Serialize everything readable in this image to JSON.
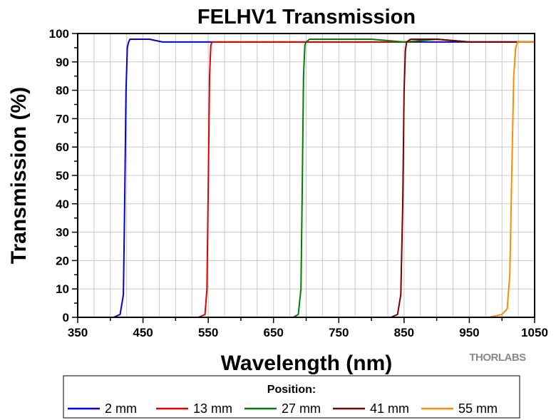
{
  "chart_data": {
    "type": "line",
    "title": "FELHV1 Transmission",
    "xlabel": "Wavelength (nm)",
    "ylabel": "Transmission (%)",
    "xlim": [
      350,
      1050
    ],
    "ylim": [
      0,
      100
    ],
    "xticks": [
      350,
      450,
      550,
      650,
      750,
      850,
      950,
      1050
    ],
    "yticks": [
      0,
      10,
      20,
      30,
      40,
      50,
      60,
      70,
      80,
      90,
      100
    ],
    "grid": true,
    "legend": {
      "title": "Position:",
      "placement": "bottom"
    },
    "logo": "THORLABS",
    "series": [
      {
        "name": "2 mm",
        "color": "#0000dd",
        "x": [
          350,
          405,
          415,
          420,
          422,
          424,
          426,
          428,
          430,
          440,
          460,
          480,
          500,
          520,
          540,
          560,
          600,
          650,
          700,
          750,
          800,
          850,
          900,
          950,
          1000,
          1050
        ],
        "y": [
          0,
          0,
          1,
          8,
          40,
          80,
          95,
          97,
          98,
          98,
          98,
          97,
          97,
          97,
          97,
          97,
          97,
          97,
          97,
          97,
          97,
          97,
          97,
          97,
          97,
          97
        ]
      },
      {
        "name": "13 mm",
        "color": "#e00000",
        "x": [
          350,
          535,
          545,
          548,
          550,
          552,
          554,
          556,
          560,
          600,
          650,
          700,
          750,
          800,
          850,
          900,
          950,
          1000,
          1050
        ],
        "y": [
          0,
          0,
          1,
          10,
          45,
          85,
          96,
          97,
          97,
          97,
          97,
          97,
          97,
          97,
          97,
          98,
          97,
          97,
          97
        ]
      },
      {
        "name": "27 mm",
        "color": "#008000",
        "x": [
          350,
          680,
          688,
          692,
          694,
          696,
          698,
          700,
          705,
          750,
          800,
          850,
          900,
          950,
          1000,
          1050
        ],
        "y": [
          0,
          0,
          1,
          10,
          45,
          85,
          96,
          97,
          98,
          98,
          98,
          97,
          98,
          97,
          97,
          97
        ]
      },
      {
        "name": "41 mm",
        "color": "#7a0000",
        "x": [
          350,
          830,
          840,
          845,
          848,
          850,
          852,
          854,
          860,
          900,
          950,
          1000,
          1050
        ],
        "y": [
          0,
          0,
          1,
          8,
          40,
          80,
          94,
          97,
          98,
          98,
          97,
          97,
          97
        ]
      },
      {
        "name": "55 mm",
        "color": "#ff8c00",
        "x": [
          350,
          980,
          1000,
          1008,
          1012,
          1015,
          1018,
          1021,
          1024,
          1030,
          1050
        ],
        "y": [
          0,
          0,
          1,
          3,
          15,
          50,
          85,
          95,
          97,
          97,
          97
        ]
      }
    ]
  }
}
